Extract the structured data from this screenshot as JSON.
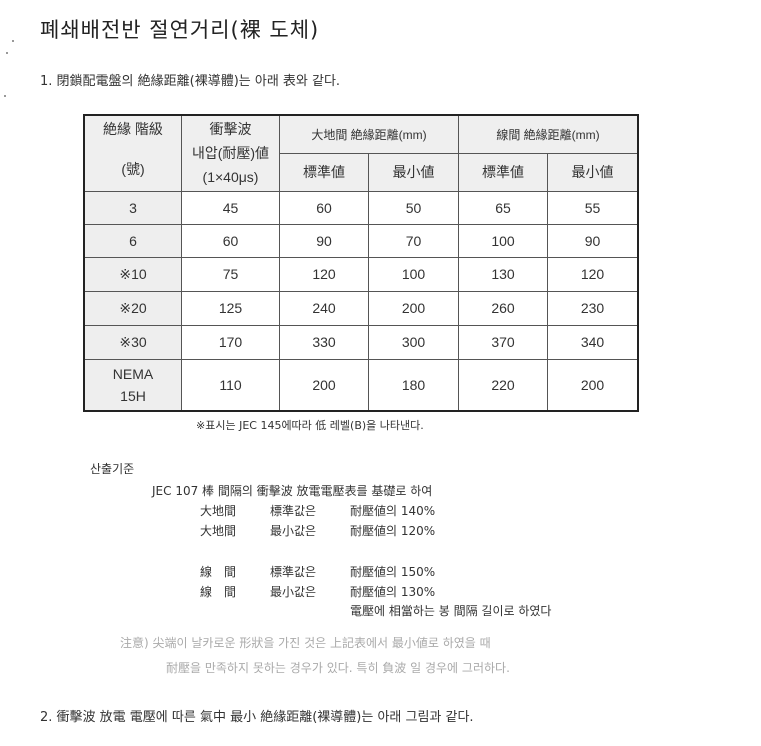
{
  "title": "폐쇄배전반 절연거리(裸 도체)",
  "section1": "1. 閉鎖配電盤의 絶緣距離(裸導體)는 아래 表와 같다.",
  "table": {
    "headers": {
      "class": "絶緣 階級",
      "class_unit": "(號)",
      "impulse_line1": "衝擊波",
      "impulse_line2": "내압(耐壓)値",
      "impulse_line3": "(1×40μs)",
      "ground": "大地間 絶緣距離(mm)",
      "phase": "線間 絶緣距離(mm)",
      "std": "標準値",
      "min": "最小値"
    },
    "rows": [
      {
        "class": "3",
        "impulse": "45",
        "g_std": "60",
        "g_min": "50",
        "p_std": "65",
        "p_min": "55"
      },
      {
        "class": "6",
        "impulse": "60",
        "g_std": "90",
        "g_min": "70",
        "p_std": "100",
        "p_min": "90"
      },
      {
        "class": "※10",
        "impulse": "75",
        "g_std": "120",
        "g_min": "100",
        "p_std": "130",
        "p_min": "120"
      },
      {
        "class": "※20",
        "impulse": "125",
        "g_std": "240",
        "g_min": "200",
        "p_std": "260",
        "p_min": "230"
      },
      {
        "class": "※30",
        "impulse": "170",
        "g_std": "330",
        "g_min": "300",
        "p_std": "370",
        "p_min": "340"
      },
      {
        "class": "NEMA",
        "class2": "15H",
        "impulse": "110",
        "g_std": "200",
        "g_min": "180",
        "p_std": "220",
        "p_min": "200"
      }
    ]
  },
  "table_note": "※표시는 JEC 145에따라 低 레벨(B)을 나타낸다.",
  "basis": {
    "title": "산출기준",
    "intro": "JEC 107 棒 間隔의 衝擊波 放電電壓表를 基礎로 하여",
    "lines": [
      {
        "a": "大地間",
        "b": "標準값은",
        "c": "耐壓値의 140%"
      },
      {
        "a": "大地間",
        "b": "最小값은",
        "c": "耐壓値의 120%"
      },
      {
        "a": "線　間",
        "b": "標準값은",
        "c": "耐壓値의 150%"
      },
      {
        "a": "線　間",
        "b": "最小값은",
        "c": "耐壓値의 130%"
      }
    ],
    "closing": "電壓에  相當하는 봉 間隔 길이로 하였다"
  },
  "caution": {
    "line1": "注意) 尖端이 날카로운 形狀을 가진 것은 上記表에서 最小値로 하였을 때",
    "line2": "耐壓을 만족하지 못하는 경우가 있다. 특히 負波 일 경우에 그러하다."
  },
  "section2": "2. 衝擊波 放電 電壓에 따른 氣中 最小 絶緣距離(裸導體)는 아래 그림과 같다."
}
